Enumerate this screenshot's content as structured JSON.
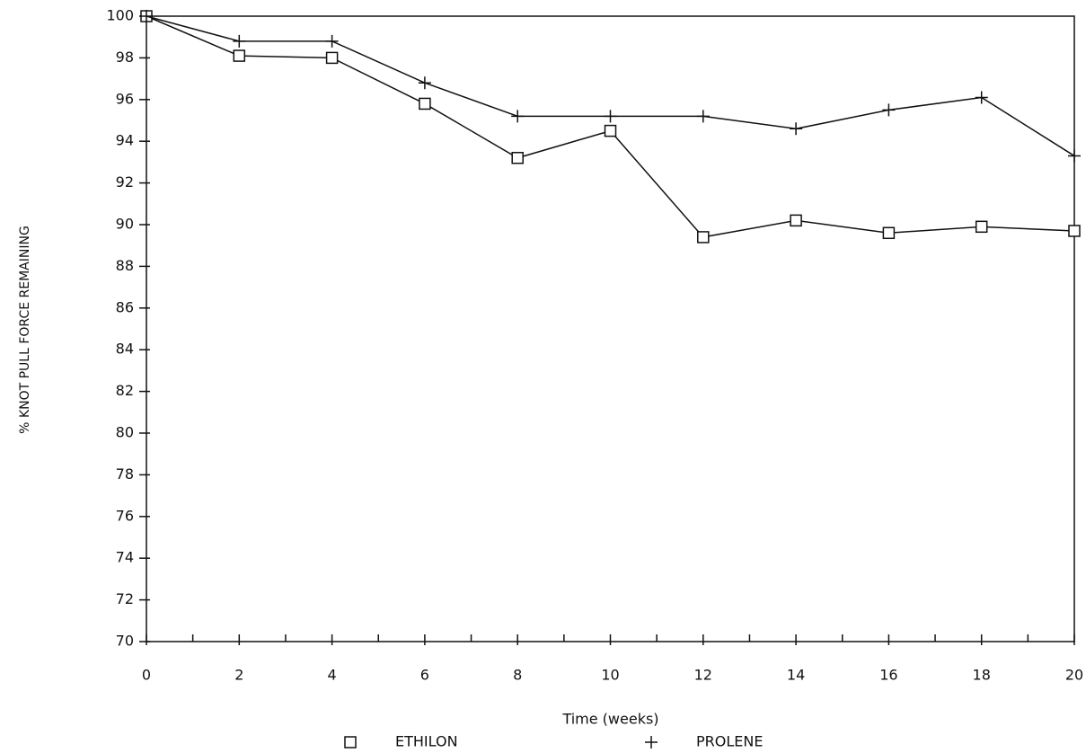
{
  "chart_data": {
    "type": "line",
    "x_label": "Time (weeks)",
    "y_label": "% KNOT PULL FORCE REMAINING",
    "x": [
      0,
      2,
      4,
      6,
      8,
      10,
      12,
      14,
      16,
      18,
      20
    ],
    "series": [
      {
        "name": "ETHILON",
        "marker": "square",
        "color": "#111111",
        "values": [
          100,
          98.1,
          98.0,
          95.8,
          93.2,
          94.5,
          89.4,
          90.2,
          89.6,
          89.9,
          89.7
        ]
      },
      {
        "name": "PROLENE",
        "marker": "plus",
        "color": "#111111",
        "values": [
          100,
          98.8,
          98.8,
          96.8,
          95.2,
          95.2,
          95.2,
          94.6,
          95.5,
          96.1,
          93.3
        ]
      }
    ],
    "xlim": [
      0,
      20
    ],
    "xticks": [
      0,
      2,
      4,
      6,
      8,
      10,
      12,
      14,
      16,
      18,
      20
    ],
    "x_minor_ticks": [
      1,
      3,
      5,
      7,
      9,
      11,
      13,
      15,
      17,
      19
    ],
    "ylim": [
      70,
      100
    ],
    "yticks": [
      70,
      72,
      74,
      76,
      78,
      80,
      82,
      84,
      86,
      88,
      90,
      92,
      94,
      96,
      98,
      100
    ],
    "grid": false,
    "legend": "bottom"
  }
}
